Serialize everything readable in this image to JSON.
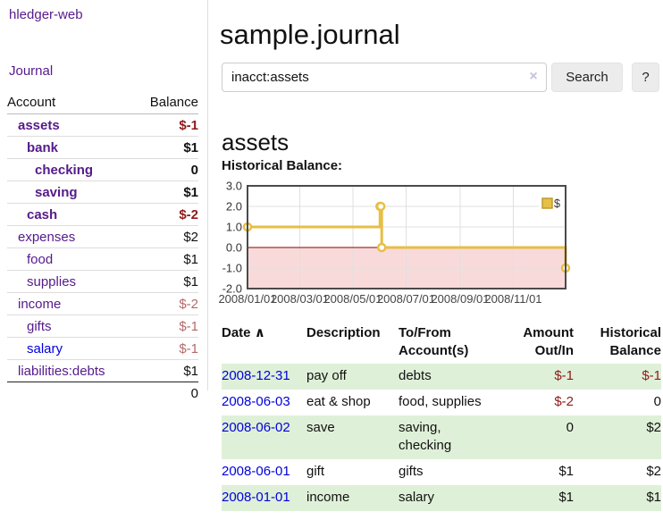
{
  "app": {
    "brand": "hledger-web",
    "nav_journal": "Journal"
  },
  "sidebar": {
    "table_headers": {
      "account": "Account",
      "balance": "Balance"
    },
    "accounts": [
      {
        "name": "assets",
        "balance": "$-1",
        "depth": 1,
        "bold": true,
        "balance_style": "neg-strong",
        "link_style": "visited"
      },
      {
        "name": "bank",
        "balance": "$1",
        "depth": 2,
        "bold": true,
        "balance_style": "plain",
        "link_style": "visited"
      },
      {
        "name": "checking",
        "balance": "0",
        "depth": 3,
        "bold": true,
        "balance_style": "plain",
        "link_style": "visited"
      },
      {
        "name": "saving",
        "balance": "$1",
        "depth": 3,
        "bold": true,
        "balance_style": "plain",
        "link_style": "visited"
      },
      {
        "name": "cash",
        "balance": "$-2",
        "depth": 2,
        "bold": true,
        "balance_style": "neg-strong",
        "link_style": "visited"
      },
      {
        "name": "expenses",
        "balance": "$2",
        "depth": 1,
        "bold": false,
        "balance_style": "plain",
        "link_style": "visited"
      },
      {
        "name": "food",
        "balance": "$1",
        "depth": 2,
        "bold": false,
        "balance_style": "plain",
        "link_style": "visited"
      },
      {
        "name": "supplies",
        "balance": "$1",
        "depth": 2,
        "bold": false,
        "balance_style": "plain",
        "link_style": "visited"
      },
      {
        "name": "income",
        "balance": "$-2",
        "depth": 1,
        "bold": false,
        "balance_style": "neg-soft",
        "link_style": "visited"
      },
      {
        "name": "gifts",
        "balance": "$-1",
        "depth": 2,
        "bold": false,
        "balance_style": "neg-soft",
        "link_style": "visited"
      },
      {
        "name": "salary",
        "balance": "$-1",
        "depth": 2,
        "bold": false,
        "balance_style": "neg-soft",
        "link_style": "unvisited"
      },
      {
        "name": "liabilities:debts",
        "balance": "$1",
        "depth": 1,
        "bold": false,
        "balance_style": "plain",
        "link_style": "visited"
      }
    ],
    "total": "0"
  },
  "main": {
    "title": "sample.journal",
    "search": {
      "value": "inacct:assets",
      "clear_icon": "×",
      "button_label": "Search",
      "help_label": "?"
    },
    "account_heading": "assets",
    "chart_label": "Historical Balance:"
  },
  "chart_data": {
    "type": "line",
    "step": true,
    "title": "Historical Balance",
    "series": [
      {
        "name": "$",
        "color": "#e6bf45",
        "points": [
          [
            "2008-01-01",
            1
          ],
          [
            "2008-06-01",
            2
          ],
          [
            "2008-06-02",
            2
          ],
          [
            "2008-06-03",
            0
          ],
          [
            "2008-12-31",
            -1
          ]
        ]
      }
    ],
    "ylim": [
      -2,
      3
    ],
    "yticks": [
      3.0,
      2.0,
      1.0,
      0.0,
      -1.0,
      -2.0
    ],
    "xticks": [
      "2008/01/01",
      "2008/03/01",
      "2008/05/01",
      "2008/07/01",
      "2008/09/01",
      "2008/11/01"
    ],
    "xrange": [
      "2008-01-01",
      "2008-12-31"
    ],
    "grid": true,
    "legend_position": "top-right",
    "legend_label": "$",
    "negative_fill": "#f9dada",
    "zero_line_color": "#8b0000",
    "border_color": "#4a4a4a",
    "gridline_color": "#e0e0e0"
  },
  "register": {
    "headers": {
      "date": "Date",
      "description": "Description",
      "accounts": "To/From Account(s)",
      "amount": "Amount Out/In",
      "balance": "Historical Balance"
    },
    "sort_icon": "∧",
    "rows": [
      {
        "date": "2008-12-31",
        "description": "pay off",
        "accounts": "debts",
        "amount": "$-1",
        "balance": "$-1",
        "amount_negative": true,
        "balance_negative": true
      },
      {
        "date": "2008-06-03",
        "description": "eat & shop",
        "accounts": "food, supplies",
        "amount": "$-2",
        "balance": "0",
        "amount_negative": true,
        "balance_negative": false
      },
      {
        "date": "2008-06-02",
        "description": "save",
        "accounts": "saving, checking",
        "amount": "0",
        "balance": "$2",
        "amount_negative": false,
        "balance_negative": false
      },
      {
        "date": "2008-06-01",
        "description": "gift",
        "accounts": "gifts",
        "amount": "$1",
        "balance": "$2",
        "amount_negative": false,
        "balance_negative": false
      },
      {
        "date": "2008-01-01",
        "description": "income",
        "accounts": "salary",
        "amount": "$1",
        "balance": "$1",
        "amount_negative": false,
        "balance_negative": false
      }
    ]
  }
}
